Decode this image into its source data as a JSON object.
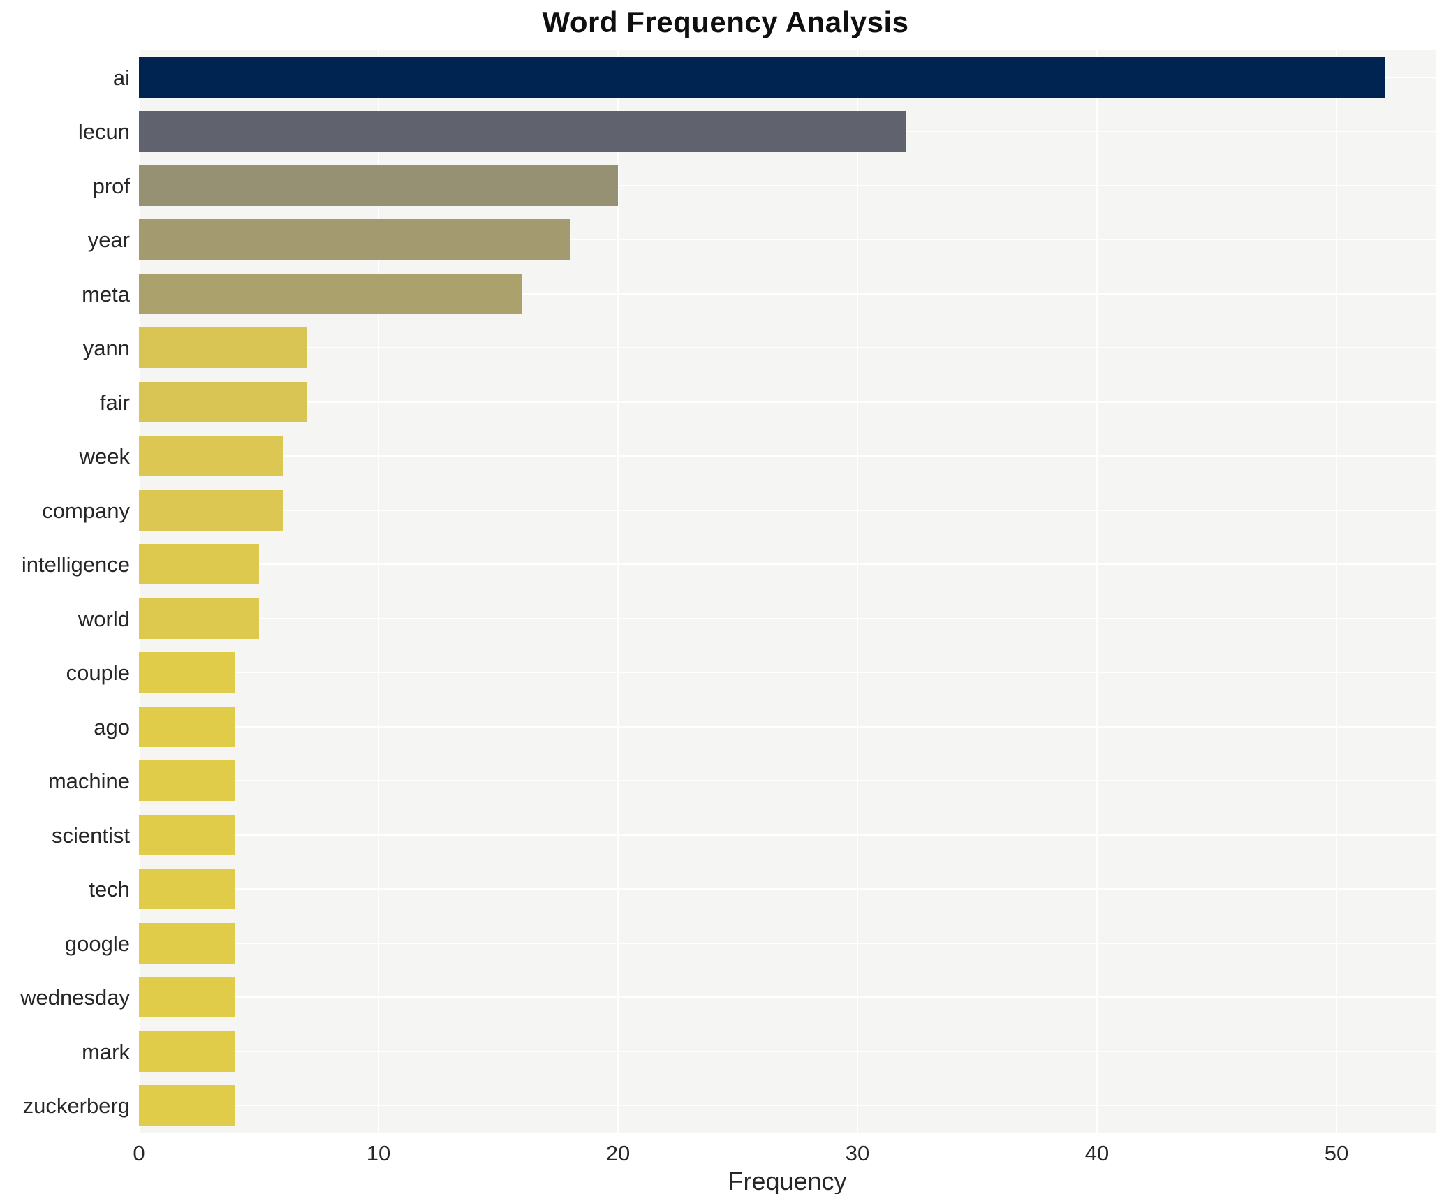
{
  "title": "Word Frequency Analysis",
  "chart_data": {
    "type": "bar",
    "orientation": "horizontal",
    "title": "Word Frequency Analysis",
    "xlabel": "Frequency",
    "ylabel": "",
    "xlim": [
      0,
      54
    ],
    "xticks": [
      0,
      10,
      20,
      30,
      40,
      50
    ],
    "grid": true,
    "legend": false,
    "plot_background": "#f5f5f3",
    "grid_color": "#ffffff",
    "categories": [
      "ai",
      "lecun",
      "prof",
      "year",
      "meta",
      "yann",
      "fair",
      "week",
      "company",
      "intelligence",
      "world",
      "couple",
      "ago",
      "machine",
      "scientist",
      "tech",
      "google",
      "wednesday",
      "mark",
      "zuckerberg"
    ],
    "values": [
      52,
      32,
      20,
      18,
      16,
      7,
      7,
      6,
      6,
      5,
      5,
      4,
      4,
      4,
      4,
      4,
      4,
      4,
      4,
      4
    ],
    "bar_colors": [
      "#002451",
      "#60626e",
      "#969172",
      "#a39b6f",
      "#aba16c",
      "#d9c553",
      "#d9c553",
      "#dbc751",
      "#dbc751",
      "#ddc94e",
      "#ddc94e",
      "#e1cc49",
      "#e1cc49",
      "#e1cc49",
      "#e1cc49",
      "#e1cc49",
      "#e1cc49",
      "#e1cc49",
      "#e1cc49",
      "#e1cc49"
    ]
  }
}
